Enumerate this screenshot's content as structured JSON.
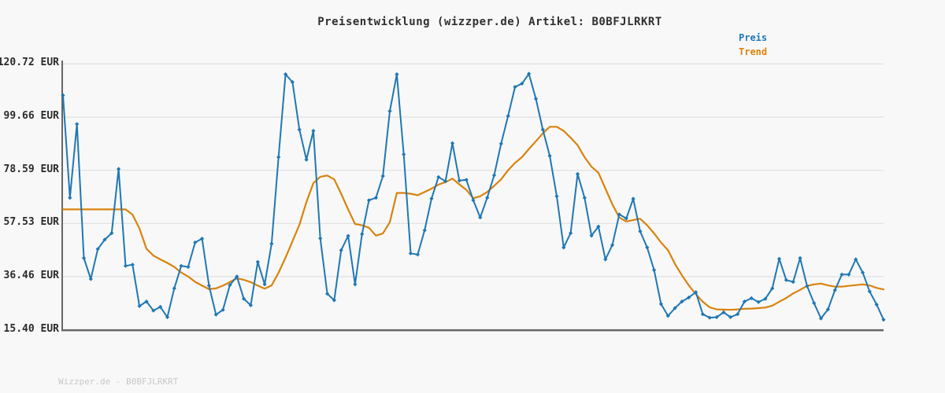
{
  "title": "Preisentwicklung (wizzper.de) Artikel: B0BFJLRKRT",
  "watermark": "Wizzper.de - B0BFJLRKRT",
  "legend": {
    "price_label": "Preis",
    "trend_label": "Trend",
    "position": "top-right"
  },
  "colors": {
    "price": "#1f77b4",
    "trend": "#d9830d",
    "grid": "#e2e2e2",
    "axis": "#666666",
    "tick_label": "#2b2b2b",
    "title": "#303030",
    "watermark": "#c8c8c8",
    "background": "#f8f8f8"
  },
  "chart_data": {
    "type": "line",
    "title": "Preisentwicklung (wizzper.de) Artikel: B0BFJLRKRT",
    "xlabel": "",
    "ylabel": "",
    "unit": "EUR",
    "ylim": [
      15.4,
      120.72
    ],
    "grid": "horizontal",
    "x_tick_labels_visible": false,
    "legend_position": "top-right",
    "y_ticks": [
      {
        "label": "120.72 EUR",
        "value": 120.72
      },
      {
        "label": "99.66 EUR",
        "value": 99.66
      },
      {
        "label": "78.59 EUR",
        "value": 78.59
      },
      {
        "label": "57.53 EUR",
        "value": 57.53
      },
      {
        "label": "36.46 EUR",
        "value": 36.46
      },
      {
        "label": "15.40 EUR",
        "value": 15.4
      }
    ],
    "series": [
      {
        "name": "Preis",
        "color": "#1f77b4",
        "marker": "diamond",
        "values": [
          108.3,
          67.7,
          96.9,
          43.8,
          35.5,
          47.4,
          51.1,
          53.7,
          79.1,
          40.7,
          41.2,
          24.8,
          26.6,
          23.0,
          24.5,
          20.4,
          31.8,
          40.7,
          40.3,
          50.0,
          51.5,
          32.9,
          21.4,
          23.3,
          33.1,
          36.5,
          27.7,
          25.1,
          42.3,
          33.4,
          49.5,
          83.8,
          116.6,
          113.5,
          94.7,
          82.8,
          94.2,
          51.6,
          29.7,
          27.1,
          46.9,
          52.6,
          33.4,
          53.3,
          66.7,
          67.7,
          76.3,
          102.0,
          116.6,
          84.9,
          45.7,
          45.2,
          54.8,
          67.4,
          75.9,
          74.2,
          89.3,
          74.5,
          74.8,
          66.7,
          59.9,
          67.7,
          76.6,
          89.1,
          100.1,
          111.6,
          112.9,
          116.8,
          106.9,
          94.7,
          84.3,
          68.3,
          48.0,
          53.7,
          77.1,
          67.7,
          52.7,
          56.3,
          43.3,
          49.0,
          61.1,
          59.5,
          67.3,
          54.4,
          48.0,
          39.1,
          25.6,
          20.9,
          24.0,
          26.6,
          28.2,
          30.3,
          21.6,
          20.2,
          20.4,
          22.3,
          20.4,
          21.6,
          26.6,
          27.9,
          26.4,
          27.7,
          31.8,
          43.5,
          35.1,
          34.4,
          43.8,
          32.7,
          26.0,
          19.9,
          23.5,
          31.1,
          37.3,
          37.3,
          43.3,
          38.1,
          30.6,
          25.4,
          19.4
        ]
      },
      {
        "name": "Trend",
        "color": "#d9830d",
        "marker": "none",
        "values": [
          63.1,
          63.1,
          63.1,
          63.1,
          63.1,
          63.1,
          63.1,
          63.1,
          63.1,
          63.1,
          61.0,
          55.5,
          47.5,
          44.8,
          43.3,
          41.9,
          40.3,
          38.1,
          36.5,
          34.4,
          32.9,
          31.5,
          31.8,
          32.9,
          34.3,
          35.8,
          35.2,
          34.3,
          32.9,
          31.7,
          33.0,
          38.0,
          44.0,
          50.5,
          57.0,
          66.0,
          73.5,
          76.0,
          76.5,
          75.0,
          69.3,
          63.1,
          57.3,
          56.8,
          55.8,
          52.7,
          53.6,
          58.0,
          69.6,
          69.6,
          69.3,
          68.7,
          70.0,
          71.3,
          72.9,
          73.9,
          75.3,
          73.0,
          70.8,
          67.5,
          68.3,
          70.0,
          72.4,
          75.0,
          78.6,
          81.5,
          83.8,
          87.0,
          90.1,
          93.2,
          95.8,
          95.8,
          94.2,
          91.5,
          88.5,
          83.8,
          80.0,
          77.6,
          71.3,
          65.1,
          59.9,
          58.3,
          58.9,
          59.4,
          56.8,
          53.6,
          50.0,
          46.9,
          41.5,
          37.0,
          33.0,
          29.5,
          26.5,
          24.3,
          23.5,
          23.4,
          23.3,
          23.5,
          23.7,
          23.8,
          24.0,
          24.2,
          25.0,
          26.5,
          28.0,
          29.8,
          31.2,
          32.8,
          33.4,
          33.7,
          33.0,
          32.5,
          32.5,
          32.8,
          33.1,
          33.4,
          33.0,
          32.0,
          31.4
        ]
      }
    ]
  }
}
